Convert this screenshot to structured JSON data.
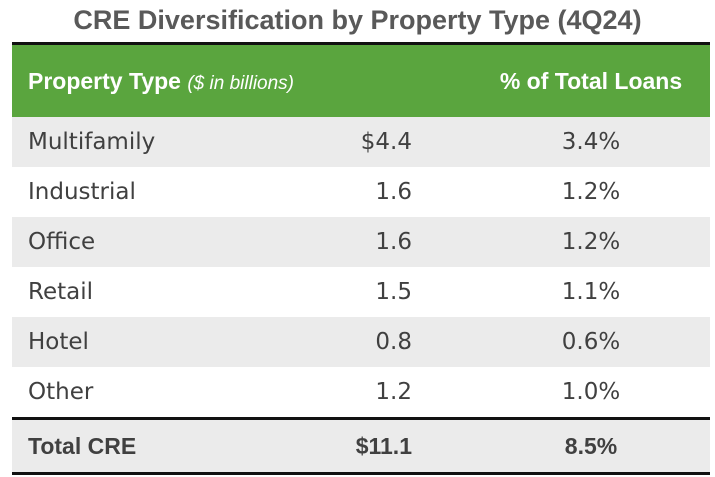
{
  "chart_data": {
    "type": "table",
    "title": "CRE Diversification by Property Type (4Q24)",
    "columns": {
      "property_type": "Property Type",
      "property_type_unit": "($ in billions)",
      "percent_of_total": "% of Total Loans"
    },
    "rows": [
      {
        "name": "Multifamily",
        "value": "$4.4",
        "pct": "3.4%"
      },
      {
        "name": "Industrial",
        "value": "1.6",
        "pct": "1.2%"
      },
      {
        "name": "Office",
        "value": "1.6",
        "pct": "1.2%"
      },
      {
        "name": "Retail",
        "value": "1.5",
        "pct": "1.1%"
      },
      {
        "name": "Hotel",
        "value": "0.8",
        "pct": "0.6%"
      },
      {
        "name": "Other",
        "value": "1.2",
        "pct": "1.0%"
      }
    ],
    "total": {
      "name": "Total CRE",
      "value": "$11.1",
      "pct": "8.5%"
    }
  },
  "colors": {
    "header_bg": "#5aa53e",
    "header_text": "#ffffff",
    "row_shade": "#ebebeb",
    "rule": "#111111",
    "title_text": "#595959"
  }
}
